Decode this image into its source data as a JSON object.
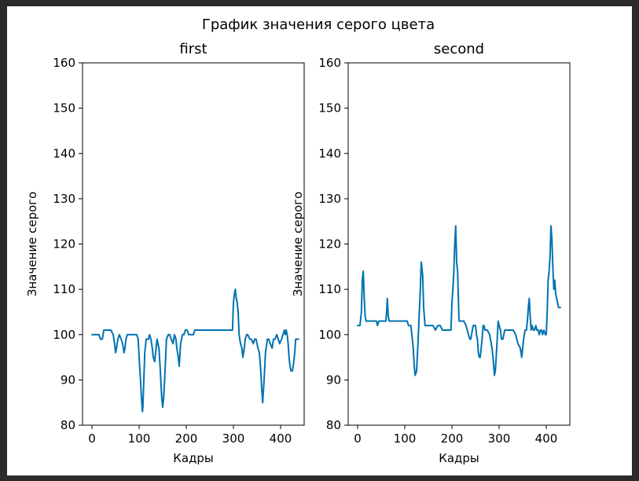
{
  "figure": {
    "suptitle": "График значения серого цвета",
    "background": "#ffffff",
    "line_color": "#0072b2"
  },
  "chart_data": [
    {
      "type": "line",
      "title": "first",
      "xlabel": "Кадры",
      "ylabel": "Значение серого",
      "xlim": [
        -20,
        450
      ],
      "ylim": [
        80,
        160
      ],
      "xticks": [
        0,
        100,
        200,
        300,
        400
      ],
      "yticks": [
        80,
        90,
        100,
        110,
        120,
        130,
        140,
        150,
        160
      ],
      "grid": false,
      "series": [
        {
          "x": [
            0,
            15,
            18,
            22,
            25,
            40,
            45,
            48,
            50,
            52,
            55,
            58,
            62,
            65,
            68,
            70,
            72,
            75,
            78,
            90,
            95,
            98,
            100,
            103,
            105,
            107,
            108,
            110,
            112,
            115,
            120,
            122,
            125,
            128,
            130,
            133,
            135,
            138,
            142,
            145,
            148,
            150,
            152,
            155,
            158,
            162,
            165,
            168,
            172,
            175,
            178,
            180,
            183,
            185,
            188,
            192,
            195,
            198,
            202,
            205,
            210,
            215,
            218,
            222,
            225,
            230,
            235,
            240,
            245,
            250,
            255,
            260,
            265,
            270,
            275,
            280,
            285,
            290,
            295,
            298,
            300,
            302,
            304,
            306,
            308,
            310,
            312,
            315,
            318,
            320,
            323,
            325,
            328,
            330,
            335,
            338,
            342,
            345,
            348,
            350,
            352,
            355,
            358,
            360,
            362,
            365,
            368,
            372,
            375,
            378,
            382,
            385,
            388,
            392,
            395,
            398,
            402,
            405,
            408,
            410,
            412,
            414,
            416,
            418,
            420,
            422,
            425,
            428,
            430,
            432,
            435,
            438
          ],
          "y": [
            100,
            100,
            99,
            99,
            101,
            101,
            100,
            98,
            96,
            97,
            99,
            100,
            99,
            98,
            96,
            97,
            99,
            100,
            100,
            100,
            100,
            99,
            95,
            90,
            86,
            83,
            84,
            90,
            96,
            99,
            99,
            100,
            99,
            97,
            95,
            94,
            96,
            99,
            97,
            92,
            86,
            84,
            86,
            92,
            99,
            100,
            100,
            99,
            98,
            100,
            99,
            97,
            95,
            93,
            98,
            100,
            100,
            101,
            101,
            100,
            100,
            100,
            101,
            101,
            101,
            101,
            101,
            101,
            101,
            101,
            101,
            101,
            101,
            101,
            101,
            101,
            101,
            101,
            101,
            101,
            107,
            109,
            110,
            108,
            107,
            105,
            100,
            98,
            97,
            95,
            97,
            99,
            100,
            100,
            99,
            99,
            98,
            99,
            99,
            98,
            97,
            96,
            92,
            88,
            85,
            90,
            96,
            99,
            99,
            98,
            97,
            99,
            99,
            100,
            99,
            98,
            99,
            100,
            101,
            100,
            101,
            100,
            98,
            95,
            93,
            92,
            92,
            94,
            96,
            99,
            99,
            99
          ]
        }
      ]
    },
    {
      "type": "line",
      "title": "second",
      "xlabel": "Кадры",
      "ylabel": "Значение серого",
      "xlim": [
        -20,
        450
      ],
      "ylim": [
        80,
        160
      ],
      "xticks": [
        0,
        100,
        200,
        300,
        400
      ],
      "yticks": [
        80,
        90,
        100,
        110,
        120,
        130,
        140,
        150,
        160
      ],
      "grid": false,
      "series": [
        {
          "x": [
            0,
            5,
            8,
            10,
            12,
            14,
            16,
            18,
            20,
            25,
            30,
            35,
            40,
            42,
            45,
            48,
            52,
            55,
            60,
            62,
            63,
            65,
            67,
            70,
            75,
            80,
            85,
            90,
            95,
            100,
            105,
            108,
            110,
            113,
            115,
            118,
            120,
            122,
            125,
            128,
            130,
            133,
            135,
            138,
            140,
            143,
            145,
            150,
            155,
            160,
            165,
            170,
            175,
            180,
            185,
            190,
            195,
            198,
            200,
            202,
            204,
            206,
            208,
            210,
            212,
            215,
            220,
            225,
            230,
            235,
            238,
            240,
            245,
            250,
            252,
            254,
            256,
            258,
            260,
            262,
            264,
            266,
            268,
            270,
            275,
            280,
            285,
            288,
            290,
            292,
            295,
            298,
            300,
            303,
            305,
            308,
            310,
            312,
            315,
            320,
            325,
            330,
            335,
            340,
            345,
            348,
            350,
            352,
            355,
            358,
            360,
            362,
            364,
            366,
            368,
            370,
            373,
            375,
            378,
            380,
            383,
            385,
            388,
            390,
            392,
            395,
            398,
            400,
            402,
            404,
            406,
            408,
            410,
            412,
            414,
            416,
            418,
            420,
            422,
            424,
            426,
            428,
            430
          ],
          "y": [
            102,
            102,
            105,
            112,
            114,
            108,
            104,
            103,
            103,
            103,
            103,
            103,
            103,
            102,
            103,
            103,
            103,
            103,
            103,
            106,
            108,
            104,
            103,
            103,
            103,
            103,
            103,
            103,
            103,
            103,
            103,
            102,
            102,
            102,
            100,
            97,
            93,
            91,
            92,
            98,
            103,
            110,
            116,
            113,
            106,
            102,
            102,
            102,
            102,
            102,
            101,
            102,
            102,
            101,
            101,
            101,
            101,
            101,
            107,
            110,
            114,
            120,
            124,
            116,
            114,
            103,
            103,
            103,
            102,
            100,
            99,
            99,
            102,
            102,
            100,
            99,
            96,
            95,
            95,
            97,
            99,
            102,
            102,
            101,
            101,
            100,
            97,
            94,
            91,
            92,
            97,
            103,
            102,
            101,
            99,
            99,
            100,
            101,
            101,
            101,
            101,
            101,
            100,
            98,
            97,
            95,
            97,
            99,
            101,
            101,
            103,
            106,
            108,
            104,
            101,
            102,
            101,
            101,
            102,
            101,
            101,
            100,
            101,
            101,
            100,
            101,
            100,
            100,
            105,
            112,
            114,
            117,
            124,
            121,
            115,
            110,
            112,
            109,
            108,
            107,
            106,
            106,
            106
          ]
        }
      ]
    }
  ]
}
